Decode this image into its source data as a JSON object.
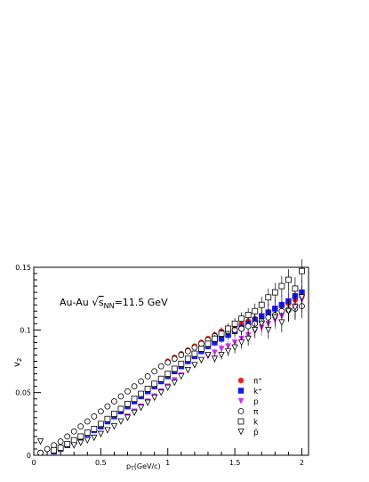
{
  "chart_data": {
    "type": "scatter",
    "title": "",
    "xlabel_main": "p",
    "xlabel_sub": "T",
    "xlabel_rest": "(GeV/c)",
    "ylabel_main": "v",
    "ylabel_sub": "2",
    "xlim": [
      0,
      2.05
    ],
    "ylim": [
      0,
      0.15
    ],
    "x_ticks": [
      {
        "v": 0,
        "label": "0"
      },
      {
        "v": 0.5,
        "label": "0.5"
      },
      {
        "v": 1,
        "label": "1"
      },
      {
        "v": 1.5,
        "label": "1.5"
      },
      {
        "v": 2,
        "label": "2"
      }
    ],
    "y_ticks": [
      {
        "v": 0,
        "label": "0"
      },
      {
        "v": 0.05,
        "label": "0.05"
      },
      {
        "v": 0.1,
        "label": "0.1"
      },
      {
        "v": 0.15,
        "label": "0.15"
      }
    ],
    "annotation": {
      "prefix": "Au-Au ",
      "sqrt_s": "s",
      "sqrt_sub": "NN",
      "suffix": "=11.5 GeV"
    },
    "legend_position": "bottom-right",
    "series": [
      {
        "name": "π⁺",
        "symbol": "circle-filled",
        "color": "#e8241e",
        "x": [
          0.05,
          0.1,
          0.15,
          0.2,
          0.25,
          0.3,
          0.35,
          0.4,
          0.45,
          0.5,
          0.55,
          0.6,
          0.65,
          0.7,
          0.75,
          0.8,
          0.85,
          0.9,
          0.95,
          1.0,
          1.05,
          1.1,
          1.15,
          1.2,
          1.25,
          1.3,
          1.35,
          1.4,
          1.45,
          1.5,
          1.55,
          1.6,
          1.65,
          1.7,
          1.75,
          1.8,
          1.85,
          1.9,
          1.95,
          2.0
        ],
        "y": [
          0.002,
          0.005,
          0.008,
          0.011,
          0.015,
          0.019,
          0.023,
          0.027,
          0.031,
          0.035,
          0.039,
          0.043,
          0.047,
          0.051,
          0.055,
          0.059,
          0.063,
          0.067,
          0.071,
          0.075,
          0.078,
          0.081,
          0.084,
          0.087,
          0.09,
          0.093,
          0.096,
          0.099,
          0.101,
          0.103,
          0.105,
          0.107,
          0.109,
          0.111,
          0.114,
          0.117,
          0.119,
          0.121,
          0.124,
          0.127
        ]
      },
      {
        "name": "k⁺",
        "symbol": "square-filled",
        "color": "#1a1ae6",
        "x": [
          0.15,
          0.2,
          0.25,
          0.3,
          0.35,
          0.4,
          0.45,
          0.5,
          0.55,
          0.6,
          0.65,
          0.7,
          0.75,
          0.8,
          0.85,
          0.9,
          0.95,
          1.0,
          1.05,
          1.1,
          1.15,
          1.2,
          1.25,
          1.3,
          1.35,
          1.4,
          1.45,
          1.5,
          1.55,
          1.6,
          1.65,
          1.7,
          1.75,
          1.8,
          1.85,
          1.9,
          1.95,
          2.0
        ],
        "y": [
          0.003,
          0.005,
          0.008,
          0.011,
          0.014,
          0.017,
          0.02,
          0.023,
          0.027,
          0.031,
          0.035,
          0.039,
          0.043,
          0.047,
          0.051,
          0.055,
          0.059,
          0.063,
          0.067,
          0.071,
          0.075,
          0.079,
          0.083,
          0.087,
          0.09,
          0.093,
          0.096,
          0.099,
          0.102,
          0.105,
          0.108,
          0.111,
          0.114,
          0.117,
          0.12,
          0.123,
          0.127,
          0.13
        ]
      },
      {
        "name": "p",
        "symbol": "triangle-down-filled",
        "color": "#cc33e8",
        "x": [
          0.3,
          0.35,
          0.4,
          0.45,
          0.5,
          0.55,
          0.6,
          0.65,
          0.7,
          0.75,
          0.8,
          0.85,
          0.9,
          0.95,
          1.0,
          1.05,
          1.1,
          1.15,
          1.2,
          1.25,
          1.3,
          1.35,
          1.4,
          1.45,
          1.5,
          1.55,
          1.6,
          1.65,
          1.7,
          1.75,
          1.8,
          1.85,
          1.9,
          1.95,
          2.0
        ],
        "y": [
          0.008,
          0.01,
          0.012,
          0.014,
          0.017,
          0.02,
          0.023,
          0.027,
          0.031,
          0.035,
          0.039,
          0.043,
          0.047,
          0.051,
          0.055,
          0.06,
          0.064,
          0.068,
          0.072,
          0.076,
          0.079,
          0.082,
          0.085,
          0.087,
          0.09,
          0.093,
          0.096,
          0.099,
          0.102,
          0.105,
          0.108,
          0.111,
          0.115,
          0.119,
          0.124
        ]
      },
      {
        "name": "π",
        "symbol": "circle-open",
        "color": "#000000",
        "x": [
          0.05,
          0.1,
          0.15,
          0.2,
          0.25,
          0.3,
          0.35,
          0.4,
          0.45,
          0.5,
          0.55,
          0.6,
          0.65,
          0.7,
          0.75,
          0.8,
          0.85,
          0.9,
          0.95,
          1.0,
          1.05,
          1.1,
          1.15,
          1.2,
          1.25,
          1.3,
          1.35,
          1.4,
          1.45,
          1.5,
          1.55,
          1.6,
          1.65,
          1.7,
          1.75,
          1.8,
          1.85,
          1.9,
          1.95,
          2.0
        ],
        "y": [
          0.002,
          0.005,
          0.008,
          0.011,
          0.015,
          0.019,
          0.023,
          0.027,
          0.031,
          0.035,
          0.039,
          0.043,
          0.047,
          0.051,
          0.055,
          0.059,
          0.063,
          0.067,
          0.071,
          0.074,
          0.077,
          0.08,
          0.083,
          0.086,
          0.089,
          0.092,
          0.095,
          0.097,
          0.099,
          0.1,
          0.101,
          0.103,
          0.105,
          0.107,
          0.11,
          0.112,
          0.115,
          0.116,
          0.117,
          0.119
        ]
      },
      {
        "name": "k",
        "symbol": "square-open",
        "color": "#000000",
        "x": [
          0.15,
          0.2,
          0.25,
          0.3,
          0.35,
          0.4,
          0.45,
          0.5,
          0.55,
          0.6,
          0.65,
          0.7,
          0.75,
          0.8,
          0.85,
          0.9,
          0.95,
          1.0,
          1.05,
          1.1,
          1.15,
          1.2,
          1.25,
          1.3,
          1.35,
          1.4,
          1.45,
          1.5,
          1.55,
          1.6,
          1.65,
          1.7,
          1.75,
          1.8,
          1.85,
          1.9,
          1.95,
          2.0
        ],
        "y": [
          0.004,
          0.006,
          0.009,
          0.012,
          0.015,
          0.018,
          0.021,
          0.025,
          0.029,
          0.033,
          0.037,
          0.041,
          0.045,
          0.049,
          0.053,
          0.057,
          0.061,
          0.065,
          0.069,
          0.073,
          0.077,
          0.081,
          0.085,
          0.089,
          0.093,
          0.097,
          0.101,
          0.105,
          0.109,
          0.112,
          0.115,
          0.12,
          0.126,
          0.13,
          0.135,
          0.14,
          0.133,
          0.147
        ]
      },
      {
        "name": "p̄",
        "symbol": "triangle-down-open",
        "color": "#000000",
        "x": [
          0.05,
          0.3,
          0.35,
          0.4,
          0.45,
          0.5,
          0.55,
          0.6,
          0.65,
          0.7,
          0.75,
          0.8,
          0.85,
          0.9,
          0.95,
          1.0,
          1.05,
          1.1,
          1.15,
          1.2,
          1.25,
          1.3,
          1.35,
          1.4,
          1.45,
          1.5,
          1.55,
          1.6,
          1.65,
          1.7,
          1.75,
          1.8,
          1.85,
          1.9,
          1.95,
          2.0
        ],
        "y": [
          0.011,
          0.008,
          0.01,
          0.012,
          0.014,
          0.017,
          0.02,
          0.023,
          0.027,
          0.03,
          0.034,
          0.038,
          0.042,
          0.046,
          0.05,
          0.054,
          0.058,
          0.063,
          0.068,
          0.072,
          0.076,
          0.08,
          0.077,
          0.08,
          0.083,
          0.086,
          0.09,
          0.093,
          0.1,
          0.105,
          0.1,
          0.11,
          0.106,
          0.115,
          0.118,
          0.126
        ]
      }
    ]
  }
}
